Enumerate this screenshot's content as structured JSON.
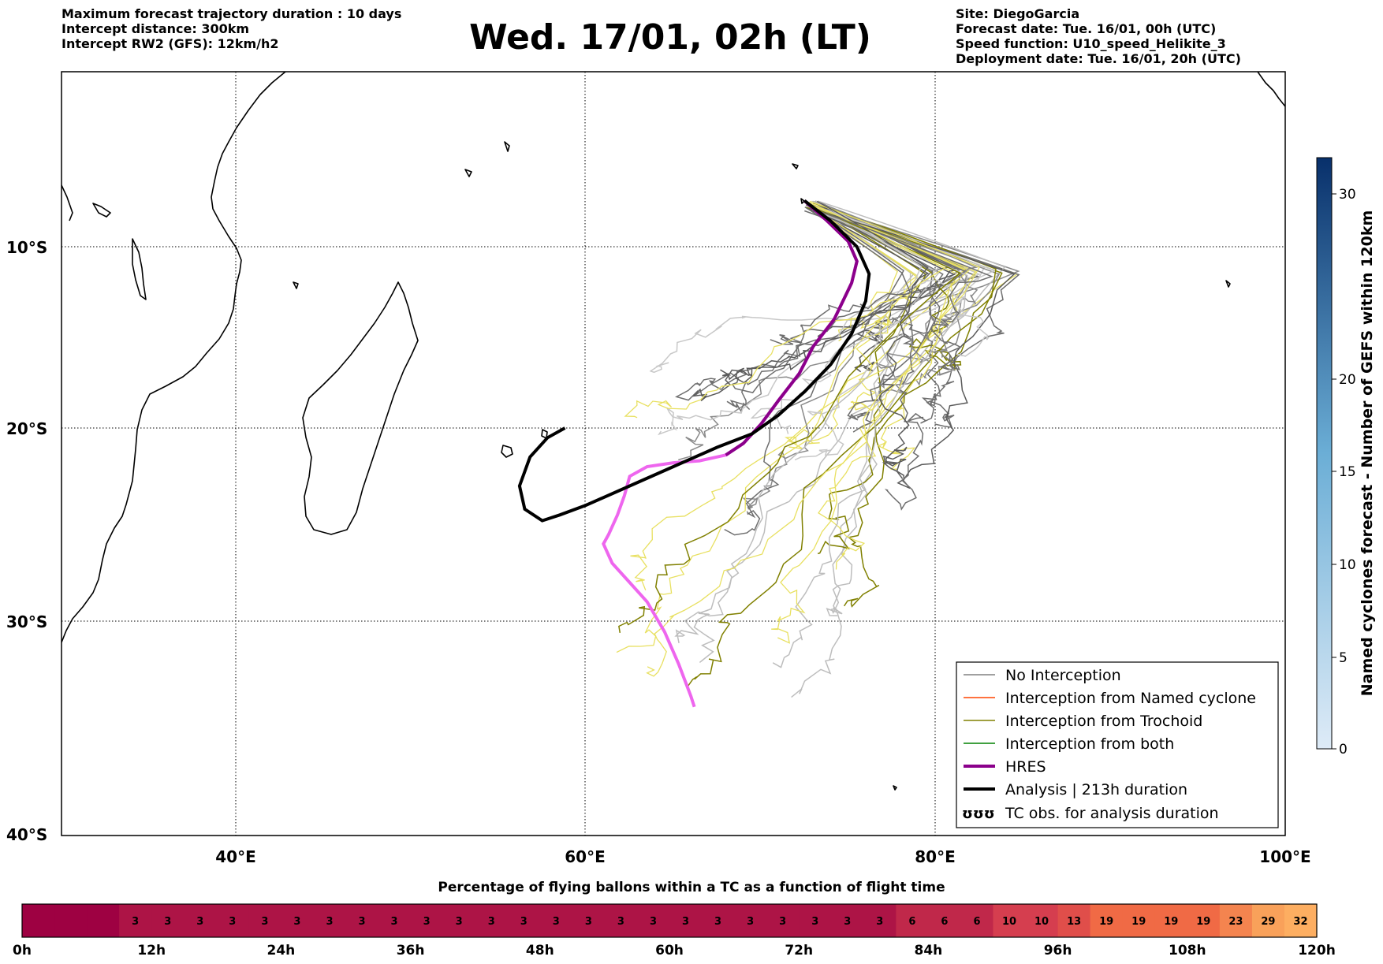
{
  "header_left": [
    "Maximum forecast trajectory duration : 10 days",
    "Intercept distance: 300km",
    "Intercept RW2 (GFS):  12km/h2"
  ],
  "title": "Wed. 17/01, 02h (LT)",
  "header_right": [
    "Site: DiegoGarcia",
    "Forecast date: Tue. 16/01, 00h (UTC)",
    "Speed function: U10_speed_Helikite_3",
    "Deployment date: Tue. 16/01, 20h (UTC)"
  ],
  "map": {
    "lat_labels": [
      "10°S",
      "20°S",
      "30°S",
      "40°S"
    ],
    "lon_labels": [
      "40°E",
      "60°E",
      "80°E",
      "100°E"
    ],
    "lon_range": [
      30,
      100
    ],
    "lat_range": [
      -40,
      -0.5
    ],
    "gridlines": true
  },
  "legend": [
    {
      "label": "No Interception",
      "color": "#808080"
    },
    {
      "label": "Interception from Named cyclone",
      "color": "#ff4500"
    },
    {
      "label": "Interception from Trochoid",
      "color": "#808000"
    },
    {
      "label": "Interception from both",
      "color": "#008000"
    },
    {
      "label": "HRES",
      "color": "#8b008b"
    },
    {
      "label": "Analysis | 213h duration",
      "color": "#000000"
    },
    {
      "label": "TC obs. for analysis duration",
      "color": "#000000",
      "symbol": "ʊʊʊ"
    }
  ],
  "colorbar_right": {
    "label": "Named cyclones forecast - Number of GEFS within 120km",
    "ticks": [
      "0",
      "5",
      "10",
      "15",
      "20",
      "30"
    ],
    "range": [
      0,
      32
    ]
  },
  "percent_bar": {
    "title": "Percentage of flying ballons within a TC as a function of flight time",
    "values": [
      "",
      "",
      "",
      "3",
      "3",
      "3",
      "3",
      "3",
      "3",
      "3",
      "3",
      "3",
      "3",
      "3",
      "3",
      "3",
      "3",
      "3",
      "3",
      "3",
      "3",
      "3",
      "3",
      "3",
      "3",
      "3",
      "3",
      "6",
      "6",
      "6",
      "10",
      "10",
      "13",
      "19",
      "19",
      "19",
      "19",
      "23",
      "29",
      "32"
    ],
    "time_labels": [
      "0h",
      "12h",
      "24h",
      "36h",
      "48h",
      "60h",
      "72h",
      "84h",
      "96h",
      "108h",
      "120h"
    ]
  },
  "chart_data": {
    "type": "line",
    "x_unit": "longitude °E",
    "y_unit": "latitude °S",
    "series": [
      {
        "name": "HRES",
        "x": [
          72.5,
          73.8,
          75.0,
          75.5,
          75.2,
          74.2,
          73.0,
          72.2,
          71.0,
          70.0,
          69.0,
          68.0,
          66.5,
          65.0,
          63.5,
          62.5,
          62.2,
          61.8,
          61.3,
          61.0,
          61.5,
          62.5,
          63.5,
          64.5,
          65.3,
          66.0,
          66.2
        ],
        "y": [
          -7.5,
          -8.6,
          -9.7,
          -10.8,
          -12.0,
          -14.0,
          -15.5,
          -17.0,
          -18.5,
          -19.8,
          -20.8,
          -21.4,
          -21.7,
          -21.8,
          -22.0,
          -22.5,
          -23.5,
          -24.5,
          -25.5,
          -26.0,
          -27.0,
          -28.0,
          -29.0,
          -30.5,
          -32.0,
          -33.5,
          -34.0
        ]
      },
      {
        "name": "Analysis | 213h duration",
        "x": [
          72.5,
          74.0,
          75.5,
          76.2,
          76.0,
          75.2,
          74.0,
          72.5,
          71.0,
          69.5,
          67.5,
          65.0,
          62.5,
          60.0,
          58.5,
          57.5,
          56.5,
          56.2,
          56.8,
          57.8,
          58.8
        ],
        "y": [
          -7.5,
          -8.6,
          -10.0,
          -11.5,
          -13.0,
          -14.8,
          -16.5,
          -18.0,
          -19.3,
          -20.3,
          -21.0,
          -22.0,
          -23.0,
          -24.0,
          -24.5,
          -24.8,
          -24.2,
          -23.0,
          -21.5,
          -20.5,
          -20.0
        ]
      }
    ]
  }
}
